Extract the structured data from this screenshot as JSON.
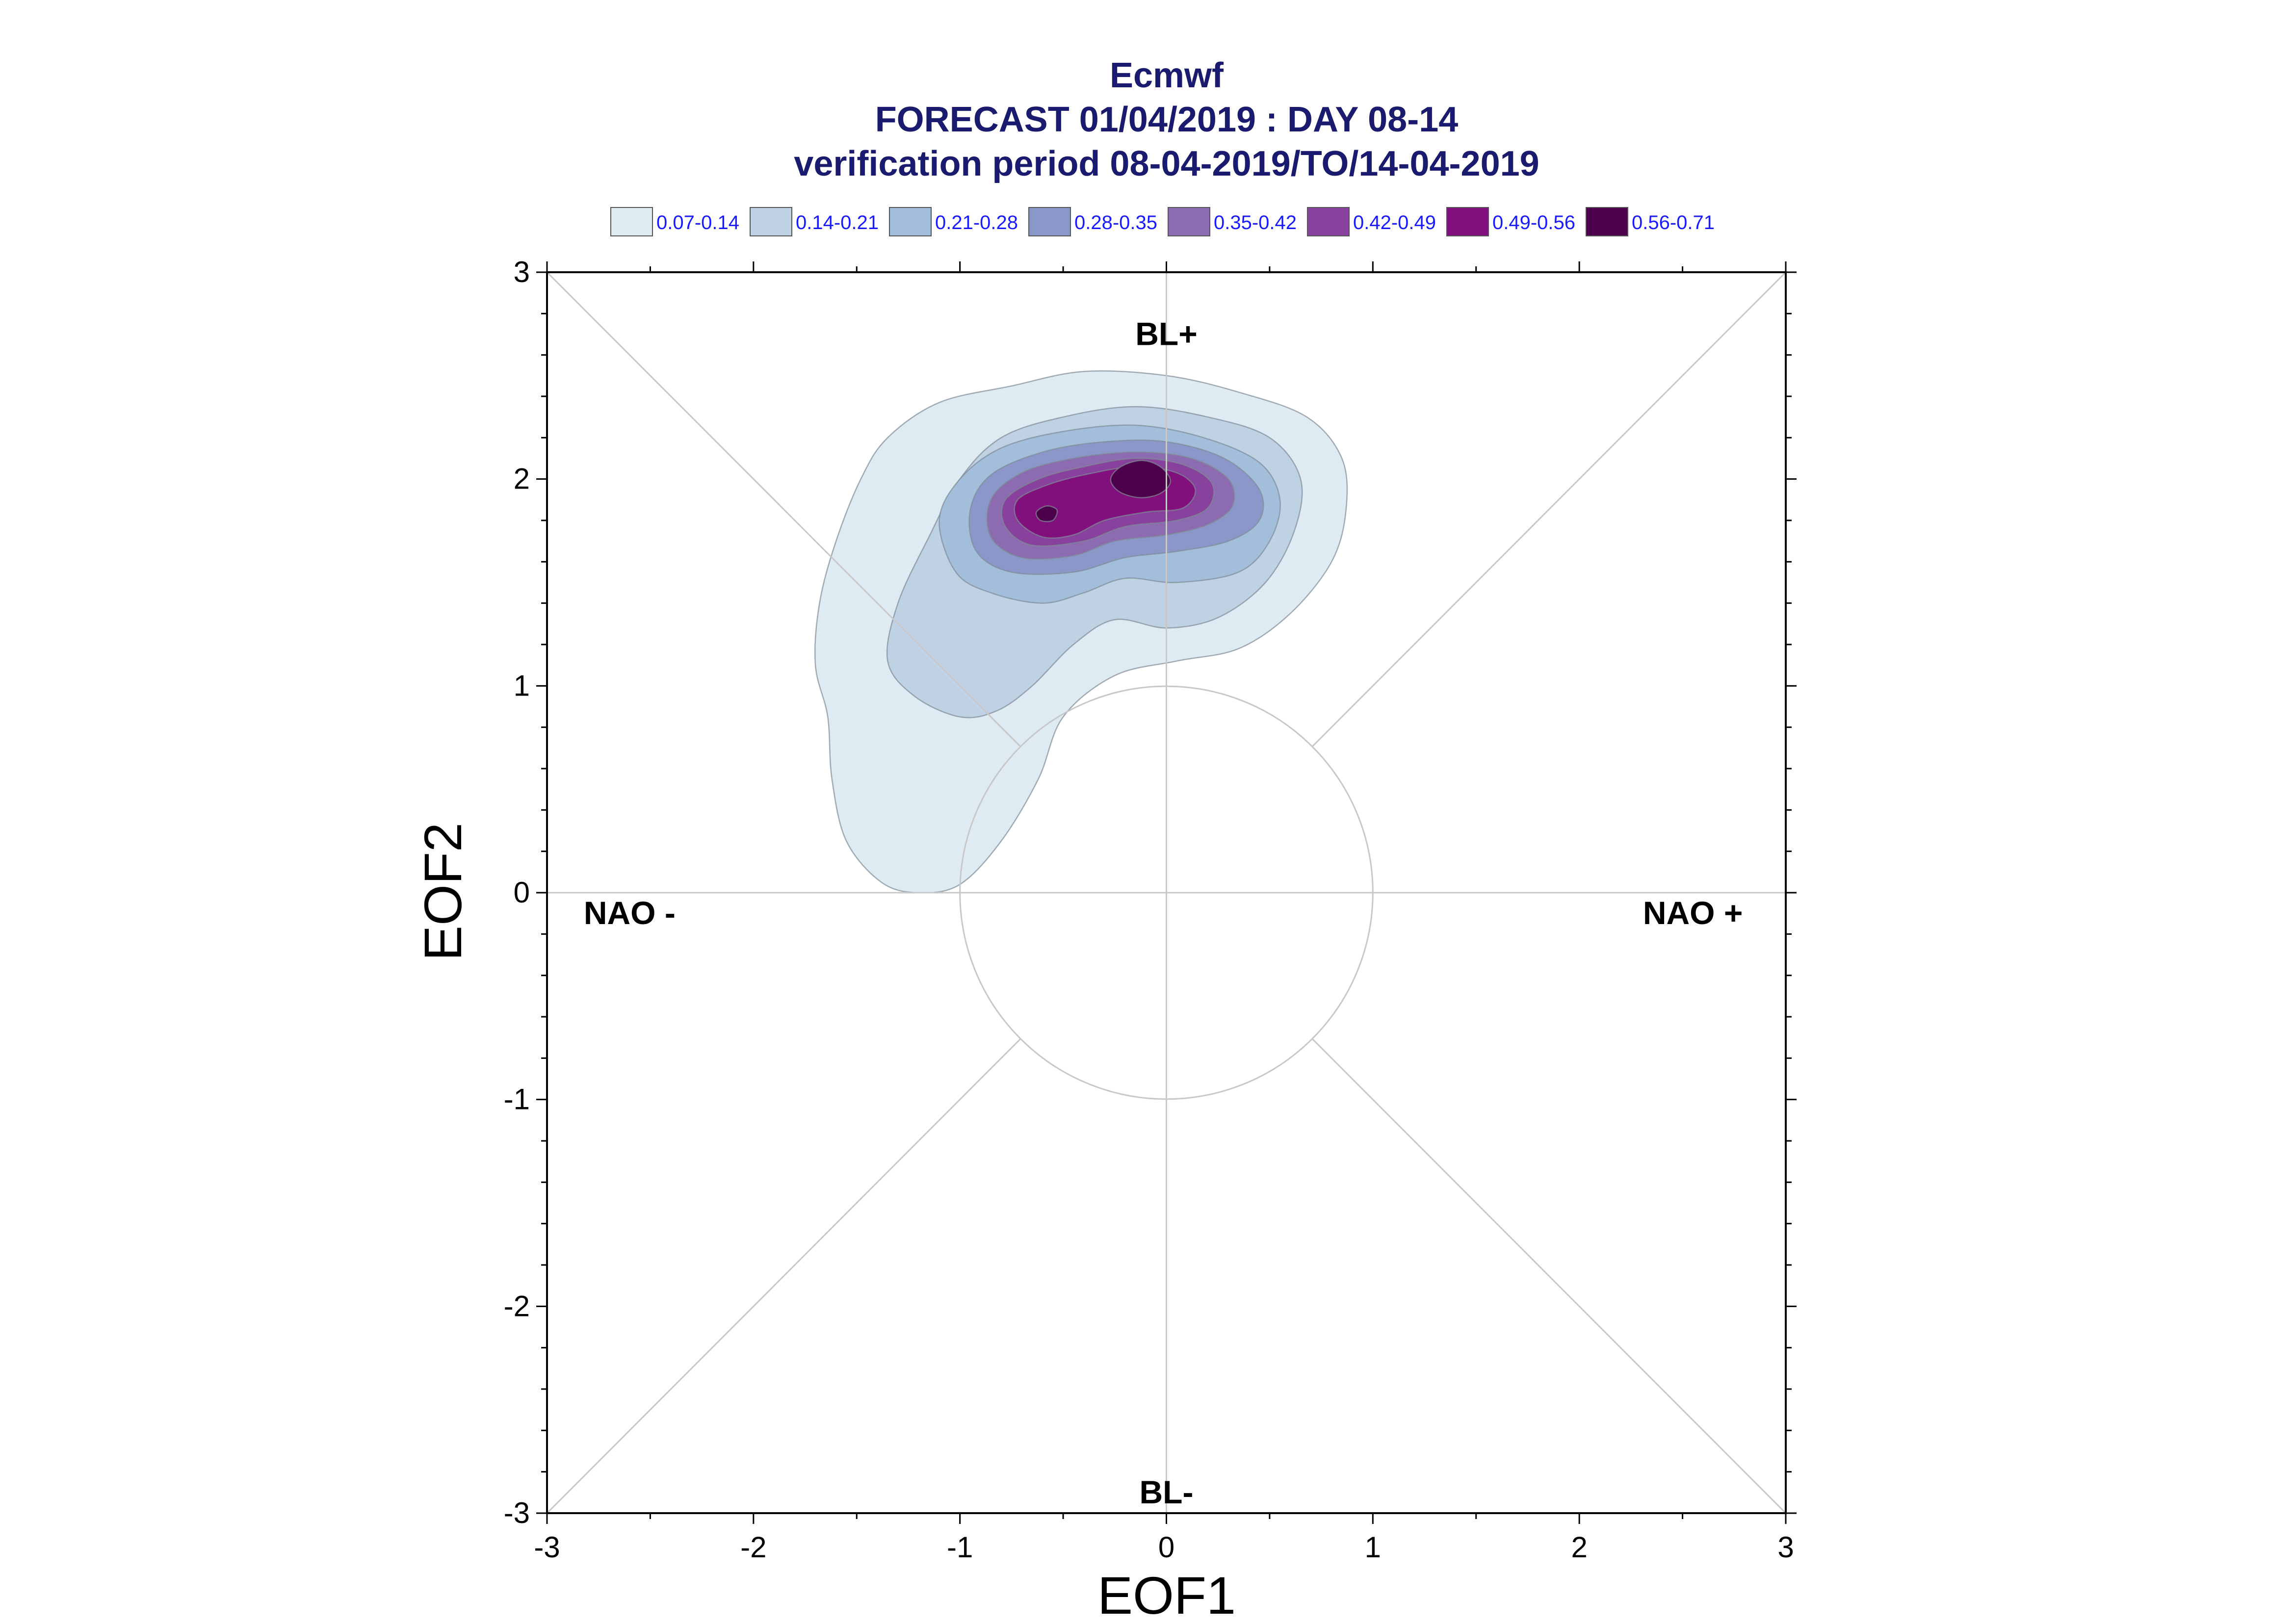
{
  "chart_data": {
    "type": "contour",
    "title": [
      "Ecmwf",
      "FORECAST 01/04/2019 : DAY 08-14",
      "verification period 08-04-2019/TO/14-04-2019"
    ],
    "xlabel": "EOF1",
    "ylabel": "EOF2",
    "xlim": [
      -3,
      3
    ],
    "ylim": [
      -3,
      3
    ],
    "xticks": [
      -3,
      -2,
      -1,
      0,
      1,
      2,
      3
    ],
    "yticks": [
      -3,
      -2,
      -1,
      0,
      1,
      2,
      3
    ],
    "legend_placement": "top",
    "levels": [
      {
        "label": "0.07-0.14",
        "color": "#deebf3"
      },
      {
        "label": "0.14-0.21",
        "color": "#bfd2e3"
      },
      {
        "label": "0.21-0.28",
        "color": "#a2bedb"
      },
      {
        "label": "0.28-0.35",
        "color": "#8c97c9"
      },
      {
        "label": "0.35-0.42",
        "color": "#8c6bb1"
      },
      {
        "label": "0.42-0.49",
        "color": "#88419d"
      },
      {
        "label": "0.49-0.56",
        "color": "#810f7c"
      },
      {
        "label": "0.56-0.71",
        "color": "#4d004b"
      }
    ],
    "regime_labels": [
      {
        "text": "BL+",
        "x": 0.0,
        "y": 2.7
      },
      {
        "text": "BL-",
        "x": 0.0,
        "y": -2.9
      },
      {
        "text": "NAO -",
        "x": -2.6,
        "y": -0.1
      },
      {
        "text": "NAO +",
        "x": 2.55,
        "y": -0.1
      }
    ],
    "unit_circle_radius": 1,
    "contours": [
      {
        "level": 0,
        "points": [
          [
            -1.2,
            0.0
          ],
          [
            -1.38,
            0.05
          ],
          [
            -1.55,
            0.25
          ],
          [
            -1.62,
            0.55
          ],
          [
            -1.64,
            0.85
          ],
          [
            -1.7,
            1.1
          ],
          [
            -1.68,
            1.4
          ],
          [
            -1.6,
            1.7
          ],
          [
            -1.48,
            2.0
          ],
          [
            -1.35,
            2.2
          ],
          [
            -1.1,
            2.37
          ],
          [
            -0.75,
            2.45
          ],
          [
            -0.4,
            2.52
          ],
          [
            0.0,
            2.5
          ],
          [
            0.35,
            2.42
          ],
          [
            0.68,
            2.3
          ],
          [
            0.85,
            2.1
          ],
          [
            0.87,
            1.85
          ],
          [
            0.8,
            1.6
          ],
          [
            0.6,
            1.35
          ],
          [
            0.35,
            1.18
          ],
          [
            0.05,
            1.12
          ],
          [
            -0.25,
            1.05
          ],
          [
            -0.5,
            0.85
          ],
          [
            -0.62,
            0.55
          ],
          [
            -0.8,
            0.25
          ],
          [
            -1.0,
            0.04
          ]
        ]
      },
      {
        "level": 1,
        "points": [
          [
            -1.0,
            0.85
          ],
          [
            -1.22,
            0.95
          ],
          [
            -1.35,
            1.12
          ],
          [
            -1.3,
            1.4
          ],
          [
            -1.15,
            1.72
          ],
          [
            -1.0,
            2.0
          ],
          [
            -0.8,
            2.2
          ],
          [
            -0.5,
            2.3
          ],
          [
            -0.15,
            2.35
          ],
          [
            0.2,
            2.3
          ],
          [
            0.5,
            2.2
          ],
          [
            0.65,
            2.0
          ],
          [
            0.62,
            1.75
          ],
          [
            0.48,
            1.5
          ],
          [
            0.25,
            1.33
          ],
          [
            0.0,
            1.28
          ],
          [
            -0.25,
            1.32
          ],
          [
            -0.45,
            1.2
          ],
          [
            -0.65,
            1.0
          ],
          [
            -0.82,
            0.88
          ]
        ]
      },
      {
        "level": 2,
        "points": [
          [
            -0.85,
            1.45
          ],
          [
            -1.02,
            1.55
          ],
          [
            -1.1,
            1.8
          ],
          [
            -1.0,
            2.0
          ],
          [
            -0.8,
            2.15
          ],
          [
            -0.5,
            2.23
          ],
          [
            -0.15,
            2.26
          ],
          [
            0.18,
            2.2
          ],
          [
            0.45,
            2.08
          ],
          [
            0.55,
            1.9
          ],
          [
            0.5,
            1.7
          ],
          [
            0.35,
            1.55
          ],
          [
            0.05,
            1.5
          ],
          [
            -0.2,
            1.52
          ],
          [
            -0.4,
            1.45
          ],
          [
            -0.6,
            1.4
          ]
        ]
      },
      {
        "level": 3,
        "points": [
          [
            -0.75,
            1.55
          ],
          [
            -0.92,
            1.65
          ],
          [
            -0.95,
            1.85
          ],
          [
            -0.85,
            2.02
          ],
          [
            -0.6,
            2.13
          ],
          [
            -0.3,
            2.18
          ],
          [
            0.0,
            2.18
          ],
          [
            0.28,
            2.1
          ],
          [
            0.45,
            1.95
          ],
          [
            0.45,
            1.8
          ],
          [
            0.3,
            1.7
          ],
          [
            0.05,
            1.65
          ],
          [
            -0.2,
            1.62
          ],
          [
            -0.45,
            1.55
          ]
        ]
      },
      {
        "level": 4,
        "points": [
          [
            -0.7,
            1.62
          ],
          [
            -0.85,
            1.72
          ],
          [
            -0.85,
            1.9
          ],
          [
            -0.7,
            2.03
          ],
          [
            -0.45,
            2.1
          ],
          [
            -0.15,
            2.13
          ],
          [
            0.12,
            2.1
          ],
          [
            0.3,
            2.0
          ],
          [
            0.32,
            1.87
          ],
          [
            0.2,
            1.78
          ],
          [
            0.0,
            1.73
          ],
          [
            -0.25,
            1.7
          ],
          [
            -0.45,
            1.63
          ]
        ]
      },
      {
        "level": 5,
        "points": [
          [
            -0.65,
            1.68
          ],
          [
            -0.78,
            1.77
          ],
          [
            -0.78,
            1.9
          ],
          [
            -0.62,
            2.0
          ],
          [
            -0.4,
            2.06
          ],
          [
            -0.15,
            2.1
          ],
          [
            0.08,
            2.07
          ],
          [
            0.22,
            1.98
          ],
          [
            0.2,
            1.86
          ],
          [
            0.05,
            1.8
          ],
          [
            -0.2,
            1.77
          ],
          [
            -0.4,
            1.7
          ]
        ]
      },
      {
        "level": 6,
        "points": [
          [
            -0.6,
            1.72
          ],
          [
            -0.72,
            1.8
          ],
          [
            -0.72,
            1.9
          ],
          [
            -0.58,
            1.97
          ],
          [
            -0.4,
            2.02
          ],
          [
            -0.15,
            2.06
          ],
          [
            0.05,
            2.03
          ],
          [
            0.14,
            1.95
          ],
          [
            0.08,
            1.86
          ],
          [
            -0.1,
            1.84
          ],
          [
            -0.3,
            1.8
          ],
          [
            -0.45,
            1.73
          ]
        ]
      },
      {
        "level": 7,
        "points": [
          [
            -0.27,
            2.0
          ],
          [
            -0.22,
            2.06
          ],
          [
            -0.12,
            2.09
          ],
          [
            -0.03,
            2.06
          ],
          [
            0.02,
            1.99
          ],
          [
            -0.03,
            1.93
          ],
          [
            -0.13,
            1.91
          ],
          [
            -0.23,
            1.94
          ]
        ]
      },
      {
        "level": 7,
        "points": [
          [
            -0.61,
            1.8
          ],
          [
            -0.63,
            1.84
          ],
          [
            -0.58,
            1.87
          ],
          [
            -0.53,
            1.85
          ],
          [
            -0.55,
            1.8
          ]
        ]
      }
    ]
  }
}
